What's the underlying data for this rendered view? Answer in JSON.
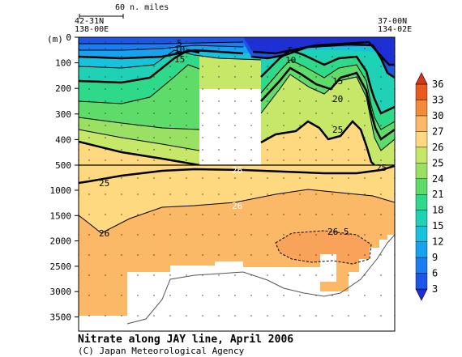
{
  "chart_data": {
    "type": "heatmap",
    "title": "Nitrate along JAY line, April 2006",
    "credit": "(C) Japan Meteorological Agency",
    "ylabel": "(m)",
    "scale_bar_label": "60 n. miles",
    "stations": {
      "left": {
        "lat": "42-31N",
        "lon": "138-00E"
      },
      "right": {
        "lat": "37-00N",
        "lon": "134-02E"
      }
    },
    "depth_ticks_upper": [
      "0",
      "100",
      "200",
      "300",
      "400",
      "500"
    ],
    "depth_ticks_lower": [
      "1000",
      "1500",
      "2000",
      "2500",
      "3000",
      "3500"
    ],
    "colorbar": {
      "ticks": [
        "3",
        "6",
        "9",
        "12",
        "15",
        "18",
        "21",
        "24",
        "25",
        "26",
        "27",
        "30",
        "33",
        "36"
      ],
      "colors": [
        "#1e2fd6",
        "#1d55e6",
        "#1c7cf2",
        "#15a2f0",
        "#17c2dc",
        "#1fd2b6",
        "#2ed98a",
        "#5fdb6a",
        "#99e063",
        "#c7e769",
        "#ffd980",
        "#fbb866",
        "#f58a3c",
        "#ea5a1e",
        "#d9371b"
      ]
    },
    "contour_labels": [
      "5",
      "10",
      "15",
      "5",
      "10",
      "15",
      "20",
      "25",
      "25",
      "26",
      "26",
      "26",
      "26.5",
      "25"
    ],
    "grid": false
  }
}
